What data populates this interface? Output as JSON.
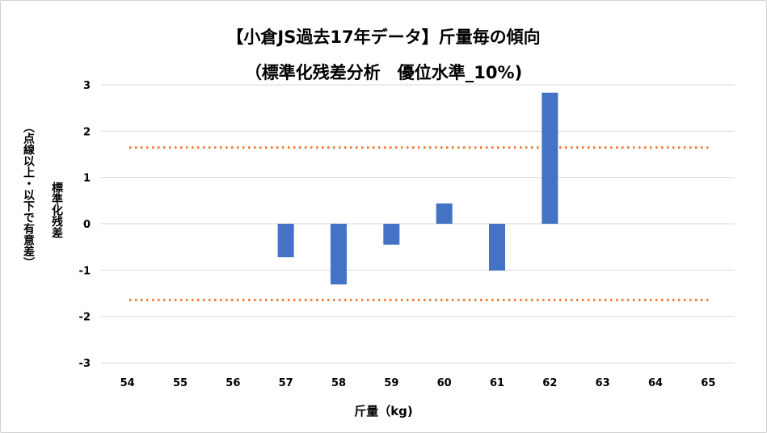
{
  "chart_data": {
    "type": "bar",
    "title": "【小倉JS過去17年データ】斤量毎の傾向",
    "subtitle": "（標準化残差分析　優位水準_10%)",
    "xlabel": "斤量（kg)",
    "ylabel": "標準化残差",
    "ylabel2": "（点線以上・以下で有意差）",
    "categories": [
      "54",
      "55",
      "56",
      "57",
      "58",
      "59",
      "60",
      "61",
      "62",
      "63",
      "64",
      "65"
    ],
    "values": [
      null,
      null,
      null,
      -0.72,
      -1.31,
      -0.45,
      0.44,
      -1.01,
      2.83,
      null,
      null,
      null
    ],
    "ylim": [
      -3,
      3
    ],
    "yticks": [
      3,
      2,
      1,
      0,
      -1,
      -2,
      -3
    ],
    "threshold_lines": [
      1.645,
      -1.645
    ],
    "grid": true,
    "legend": "none",
    "colors": {
      "bar": "#4472C4",
      "threshold": "#ED7D31",
      "grid": "#d9d9d9"
    }
  }
}
